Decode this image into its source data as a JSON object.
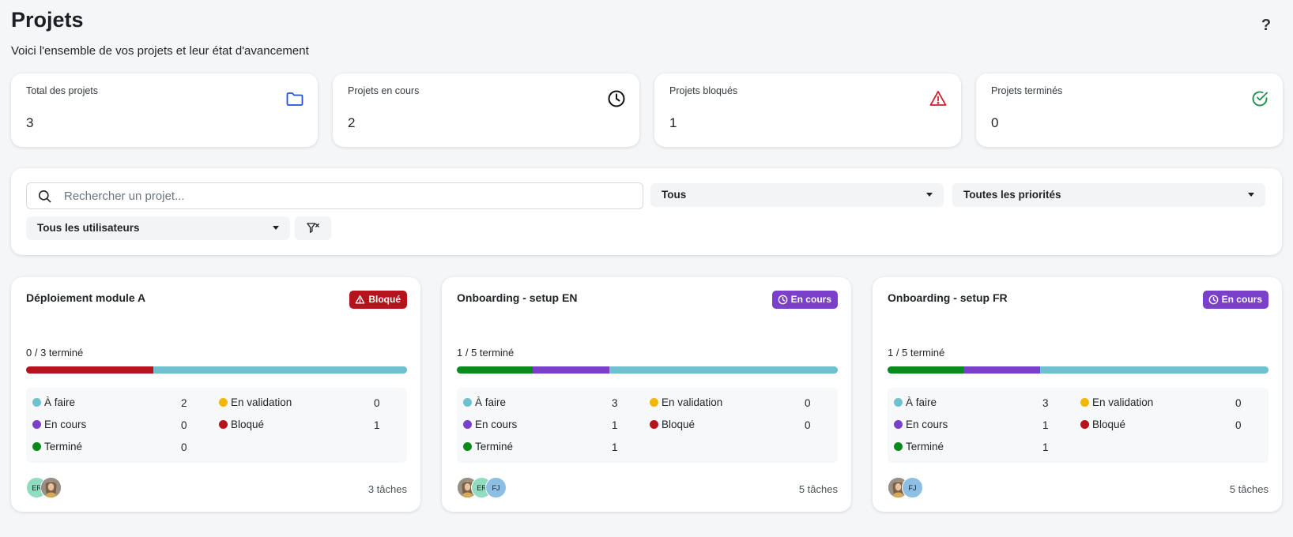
{
  "header": {
    "title": "Projets",
    "subtitle": "Voici l'ensemble de vos projets et leur état d'avancement",
    "help_label": "?"
  },
  "stats": [
    {
      "label": "Total des projets",
      "value": "3",
      "icon": "folder-icon",
      "color": "#2352d9"
    },
    {
      "label": "Projets en cours",
      "value": "2",
      "icon": "clock-icon",
      "color": "#111111"
    },
    {
      "label": "Projets bloqués",
      "value": "1",
      "icon": "warning-icon",
      "color": "#d0202e"
    },
    {
      "label": "Projets terminés",
      "value": "0",
      "icon": "check-circle-icon",
      "color": "#1e9151"
    }
  ],
  "filters": {
    "search_placeholder": "Rechercher un projet...",
    "status_value": "Tous",
    "priority_value": "Toutes les priorités",
    "user_value": "Tous les utilisateurs"
  },
  "status_labels": {
    "todo": "À faire",
    "in_progress": "En cours",
    "done": "Terminé",
    "validation": "En validation",
    "blocked": "Bloqué"
  },
  "colors": {
    "todo": "#6ec1cf",
    "in_progress": "#7a40c9",
    "done": "#0a8a1a",
    "validation": "#f2b705",
    "blocked": "#b5141c"
  },
  "projects": [
    {
      "title": "Déploiement module A",
      "badge": "Bloqué",
      "badge_type": "blocked",
      "progress_text": "0 / 3 terminé",
      "counts": {
        "todo": "2",
        "in_progress": "0",
        "done": "0",
        "validation": "0",
        "blocked": "1"
      },
      "bar": [
        {
          "status": "blocked",
          "fraction": 0.333
        },
        {
          "status": "todo",
          "fraction": 0.667
        }
      ],
      "avatars": [
        {
          "initials": "ER",
          "color": "#8fdcc0"
        },
        {
          "initials": "",
          "photo": true
        }
      ],
      "task_count": "3 tâches"
    },
    {
      "title": "Onboarding - setup EN",
      "badge": "En cours",
      "badge_type": "progress",
      "progress_text": "1 / 5 terminé",
      "counts": {
        "todo": "3",
        "in_progress": "1",
        "done": "1",
        "validation": "0",
        "blocked": "0"
      },
      "bar": [
        {
          "status": "done",
          "fraction": 0.2
        },
        {
          "status": "in_progress",
          "fraction": 0.2
        },
        {
          "status": "todo",
          "fraction": 0.6
        }
      ],
      "avatars": [
        {
          "initials": "",
          "photo": true
        },
        {
          "initials": "ER",
          "color": "#8fdcc0"
        },
        {
          "initials": "FJ",
          "color": "#8cbfe3"
        }
      ],
      "task_count": "5 tâches"
    },
    {
      "title": "Onboarding - setup FR",
      "badge": "En cours",
      "badge_type": "progress",
      "progress_text": "1 / 5 terminé",
      "counts": {
        "todo": "3",
        "in_progress": "1",
        "done": "1",
        "validation": "0",
        "blocked": "0"
      },
      "bar": [
        {
          "status": "done",
          "fraction": 0.2
        },
        {
          "status": "in_progress",
          "fraction": 0.2
        },
        {
          "status": "todo",
          "fraction": 0.6
        }
      ],
      "avatars": [
        {
          "initials": "",
          "photo": true
        },
        {
          "initials": "FJ",
          "color": "#8cbfe3"
        }
      ],
      "task_count": "5 tâches"
    }
  ]
}
